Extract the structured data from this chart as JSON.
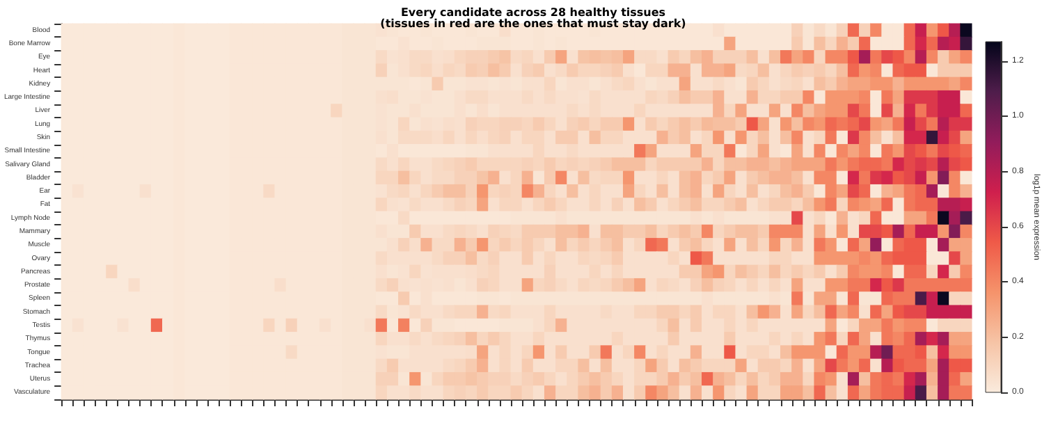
{
  "chart_data": {
    "type": "heatmap",
    "title": "Every candidate across 28 healthy tissues",
    "subtitle": "(tissues in red are the ones that must stay dark)",
    "clabel": "log1p mean expression",
    "clim": [
      0,
      1.27
    ],
    "cticks": [
      {
        "value": 0,
        "label": "0.0"
      },
      0.2,
      0.4,
      0.6,
      0.8,
      {
        "value": 1,
        "label": "1.0"
      },
      1.2
    ],
    "categories": [
      null,
      null,
      null,
      null,
      null,
      null,
      null,
      null,
      null,
      null,
      null,
      null,
      null,
      null,
      null,
      null,
      null,
      null,
      null,
      null,
      null,
      null,
      null,
      null,
      null,
      null,
      null,
      null,
      null,
      null,
      null,
      null,
      null,
      null,
      null,
      null,
      null,
      null,
      null,
      null,
      null,
      null,
      null,
      null,
      null,
      null,
      null,
      null,
      null,
      null,
      null,
      null,
      null,
      null,
      null,
      null,
      null,
      null,
      null,
      null,
      null,
      null,
      null,
      null,
      null,
      null,
      null,
      null,
      null,
      null,
      null,
      null,
      null,
      null,
      null,
      null,
      null,
      null,
      null,
      null,
      null
    ],
    "y_categories": [
      "Blood",
      "Bone Marrow",
      "Eye",
      "Heart",
      "Kidney",
      "Large Intestine",
      "Liver",
      "Lung",
      "Skin",
      "Small Intestine",
      "Salivary Gland",
      "Bladder",
      "Ear",
      "Fat",
      "Lymph Node",
      "Mammary",
      "Muscle",
      "Ovary",
      "Pancreas",
      "Prostate",
      "Spleen",
      "Stomach",
      "Testis",
      "Thymus",
      "Tongue",
      "Trachea",
      "Uterus",
      "Vasculature"
    ],
    "cells": [
      [
        0.01,
        0.01,
        0.01,
        0.01,
        0.01,
        0.01,
        0.01,
        0.01,
        0.01,
        0.01,
        0.02,
        0.01,
        0.01,
        0.01,
        0.01,
        0.02,
        0.02,
        0.02,
        0.02,
        0.02,
        0.02,
        0.02,
        0.02,
        0.02,
        0.02,
        0.03,
        0.03,
        0.03,
        0.04,
        0.03,
        0.02,
        0.02,
        0.03,
        0.02,
        0.02,
        0.02,
        0.03,
        0.02,
        0.02,
        0.06,
        0.02,
        0.02,
        0.03,
        0.02,
        0.02,
        0.02,
        0.02,
        0.03,
        0.02,
        0.02,
        0.02,
        0.02,
        0.02,
        0.02,
        0.02,
        0.02,
        0.02,
        0.02,
        0.05,
        0.02,
        0.02,
        0.02,
        0.02,
        0.02,
        0.02,
        0.12,
        0.03,
        0.08,
        0.03,
        0.12,
        0.5,
        0.12,
        0.4,
        0.02,
        0.02,
        0.5,
        0.75,
        0.35,
        0.55,
        0.8,
        1.25
      ],
      [
        0.01,
        0.01,
        0.01,
        0.01,
        0.01,
        0.01,
        0.01,
        0.01,
        0.01,
        0.01,
        0.02,
        0.01,
        0.01,
        0.01,
        0.01,
        0.02,
        0.02,
        0.02,
        0.02,
        0.02,
        0.02,
        0.02,
        0.02,
        0.02,
        0.02,
        0.03,
        0.03,
        0.03,
        0.02,
        0.02,
        0.04,
        0.02,
        0.02,
        0.03,
        0.02,
        0.02,
        0.02,
        0.03,
        0.03,
        0.03,
        0.02,
        0.02,
        0.03,
        0.02,
        0.03,
        0.02,
        0.02,
        0.02,
        0.02,
        0.02,
        0.02,
        0.02,
        0.02,
        0.02,
        0.02,
        0.02,
        0.02,
        0.02,
        0.02,
        0.3,
        0.02,
        0.02,
        0.02,
        0.02,
        0.02,
        0.15,
        0.03,
        0.2,
        0.1,
        0.25,
        0.15,
        0.5,
        0.02,
        0.02,
        0.02,
        0.5,
        0.7,
        0.5,
        0.8,
        0.75,
        1.15
      ],
      [
        0.01,
        0.01,
        0.01,
        0.01,
        0.01,
        0.01,
        0.01,
        0.01,
        0.01,
        0.01,
        0.02,
        0.01,
        0.01,
        0.01,
        0.01,
        0.02,
        0.02,
        0.02,
        0.02,
        0.02,
        0.02,
        0.02,
        0.02,
        0.02,
        0.02,
        0.03,
        0.03,
        0.03,
        0.08,
        0.04,
        0.05,
        0.08,
        0.08,
        0.05,
        0.06,
        0.1,
        0.12,
        0.12,
        0.15,
        0.18,
        0.08,
        0.1,
        0.05,
        0.15,
        0.3,
        0.05,
        0.18,
        0.2,
        0.18,
        0.2,
        0.3,
        0.08,
        0.08,
        0.05,
        0.15,
        0.1,
        0.2,
        0.25,
        0.12,
        0.12,
        0.12,
        0.2,
        0.05,
        0.2,
        0.45,
        0.3,
        0.4,
        0.1,
        0.4,
        0.4,
        0.55,
        0.85,
        0.45,
        0.6,
        0.55,
        0.4,
        0.8,
        0.4,
        0.15,
        0.3,
        0.4
      ],
      [
        0.01,
        0.01,
        0.01,
        0.01,
        0.01,
        0.01,
        0.01,
        0.01,
        0.01,
        0.01,
        0.02,
        0.01,
        0.01,
        0.01,
        0.01,
        0.02,
        0.02,
        0.02,
        0.02,
        0.02,
        0.02,
        0.02,
        0.02,
        0.02,
        0.02,
        0.03,
        0.03,
        0.03,
        0.12,
        0.03,
        0.05,
        0.08,
        0.1,
        0.06,
        0.1,
        0.08,
        0.15,
        0.13,
        0.2,
        0.15,
        0.05,
        0.12,
        0.15,
        0.05,
        0.08,
        0.15,
        0.1,
        0.1,
        0.12,
        0.15,
        0.05,
        0.02,
        0.1,
        0.1,
        0.25,
        0.25,
        0.05,
        0.25,
        0.25,
        0.3,
        0.08,
        0.1,
        0.2,
        0.05,
        0.1,
        0.15,
        0.12,
        0.15,
        0.1,
        0.2,
        0.5,
        0.35,
        0.4,
        0.02,
        0.5,
        0.55,
        0.55,
        0.02,
        0.15,
        0.15,
        0.15
      ],
      [
        0.01,
        0.01,
        0.01,
        0.01,
        0.01,
        0.01,
        0.01,
        0.01,
        0.01,
        0.01,
        0.02,
        0.01,
        0.01,
        0.01,
        0.01,
        0.02,
        0.02,
        0.02,
        0.02,
        0.02,
        0.02,
        0.02,
        0.02,
        0.02,
        0.02,
        0.03,
        0.03,
        0.03,
        0.03,
        0.03,
        0.03,
        0.02,
        0.03,
        0.15,
        0.03,
        0.03,
        0.04,
        0.04,
        0.03,
        0.04,
        0.03,
        0.05,
        0.05,
        0.1,
        0.03,
        0.05,
        0.05,
        0.03,
        0.05,
        0.08,
        0.1,
        0.05,
        0.03,
        0.05,
        0.05,
        0.3,
        0.05,
        0.05,
        0.08,
        0.05,
        0.03,
        0.15,
        0.1,
        0.05,
        0.08,
        0.1,
        0.05,
        0.2,
        0.15,
        0.25,
        0.3,
        0.3,
        0.35,
        0.35,
        0.25,
        0.35,
        0.35,
        0.35,
        0.35,
        0.3,
        0.4
      ],
      [
        0.01,
        0.01,
        0.01,
        0.01,
        0.01,
        0.01,
        0.01,
        0.01,
        0.01,
        0.01,
        0.02,
        0.01,
        0.01,
        0.01,
        0.01,
        0.02,
        0.02,
        0.02,
        0.02,
        0.02,
        0.02,
        0.02,
        0.02,
        0.02,
        0.02,
        0.03,
        0.03,
        0.03,
        0.05,
        0.06,
        0.03,
        0.03,
        0.04,
        0.03,
        0.03,
        0.05,
        0.08,
        0.08,
        0.05,
        0.05,
        0.05,
        0.08,
        0.05,
        0.08,
        0.05,
        0.05,
        0.04,
        0.08,
        0.05,
        0.05,
        0.05,
        0.05,
        0.1,
        0.08,
        0.12,
        0.2,
        0.15,
        0.15,
        0.25,
        0.05,
        0.05,
        0.25,
        0.1,
        0.1,
        0.15,
        0.15,
        0.4,
        0.02,
        0.35,
        0.35,
        0.35,
        0.4,
        0.02,
        0.45,
        0.3,
        0.65,
        0.65,
        0.65,
        0.75,
        0.75,
        0.02
      ],
      [
        0.01,
        0.01,
        0.01,
        0.01,
        0.01,
        0.01,
        0.01,
        0.01,
        0.01,
        0.01,
        0.02,
        0.01,
        0.01,
        0.01,
        0.01,
        0.02,
        0.02,
        0.02,
        0.02,
        0.02,
        0.02,
        0.02,
        0.02,
        0.02,
        0.1,
        0.03,
        0.03,
        0.03,
        0.04,
        0.03,
        0.03,
        0.05,
        0.03,
        0.03,
        0.03,
        0.05,
        0.03,
        0.06,
        0.03,
        0.05,
        0.05,
        0.05,
        0.05,
        0.05,
        0.05,
        0.08,
        0.05,
        0.08,
        0.05,
        0.05,
        0.05,
        0.1,
        0.05,
        0.05,
        0.05,
        0.05,
        0.05,
        0.05,
        0.25,
        0.1,
        0.3,
        0.05,
        0.05,
        0.3,
        0.05,
        0.4,
        0.2,
        0.3,
        0.35,
        0.35,
        0.6,
        0.45,
        0.02,
        0.6,
        0.25,
        0.7,
        0.45,
        0.65,
        0.75,
        0.75,
        0.5
      ],
      [
        0.01,
        0.01,
        0.01,
        0.01,
        0.01,
        0.01,
        0.01,
        0.01,
        0.01,
        0.01,
        0.02,
        0.01,
        0.01,
        0.01,
        0.01,
        0.02,
        0.02,
        0.02,
        0.02,
        0.02,
        0.02,
        0.02,
        0.02,
        0.02,
        0.02,
        0.03,
        0.03,
        0.03,
        0.04,
        0.03,
        0.1,
        0.03,
        0.05,
        0.04,
        0.06,
        0.05,
        0.12,
        0.1,
        0.1,
        0.12,
        0.12,
        0.1,
        0.15,
        0.1,
        0.05,
        0.12,
        0.15,
        0.1,
        0.15,
        0.15,
        0.35,
        0.05,
        0.15,
        0.1,
        0.15,
        0.2,
        0.15,
        0.22,
        0.2,
        0.2,
        0.15,
        0.55,
        0.3,
        0.05,
        0.35,
        0.2,
        0.4,
        0.35,
        0.5,
        0.45,
        0.5,
        0.6,
        0.35,
        0.3,
        0.45,
        0.75,
        0.6,
        0.45,
        0.8,
        0.65,
        0.65
      ],
      [
        0.01,
        0.01,
        0.01,
        0.01,
        0.01,
        0.01,
        0.01,
        0.01,
        0.01,
        0.01,
        0.02,
        0.01,
        0.01,
        0.01,
        0.01,
        0.02,
        0.02,
        0.02,
        0.02,
        0.02,
        0.02,
        0.02,
        0.02,
        0.02,
        0.02,
        0.03,
        0.03,
        0.03,
        0.05,
        0.03,
        0.08,
        0.08,
        0.08,
        0.06,
        0.1,
        0.05,
        0.1,
        0.06,
        0.1,
        0.12,
        0.05,
        0.1,
        0.1,
        0.05,
        0.15,
        0.15,
        0.05,
        0.2,
        0.1,
        0.1,
        0.05,
        0.05,
        0.05,
        0.25,
        0.15,
        0.2,
        0.05,
        0.1,
        0.35,
        0.05,
        0.35,
        0.1,
        0.2,
        0.05,
        0.2,
        0.4,
        0.05,
        0.1,
        0.45,
        0.02,
        0.65,
        0.4,
        0.2,
        0.05,
        0.2,
        0.7,
        0.7,
        1.15,
        0.75,
        0.6,
        0.3
      ],
      [
        0.01,
        0.01,
        0.01,
        0.01,
        0.01,
        0.01,
        0.01,
        0.01,
        0.01,
        0.01,
        0.02,
        0.01,
        0.01,
        0.01,
        0.01,
        0.02,
        0.02,
        0.02,
        0.02,
        0.02,
        0.02,
        0.02,
        0.02,
        0.02,
        0.02,
        0.03,
        0.03,
        0.03,
        0.02,
        0.05,
        0.02,
        0.02,
        0.02,
        0.02,
        0.02,
        0.02,
        0.03,
        0.03,
        0.05,
        0.05,
        0.05,
        0.05,
        0.1,
        0.05,
        0.05,
        0.08,
        0.05,
        0.05,
        0.05,
        0.05,
        0.05,
        0.45,
        0.3,
        0.05,
        0.05,
        0.05,
        0.3,
        0.1,
        0.1,
        0.45,
        0.02,
        0.1,
        0.3,
        0.05,
        0.02,
        0.3,
        0.05,
        0.4,
        0.02,
        0.4,
        0.3,
        0.4,
        0.02,
        0.45,
        0.35,
        0.6,
        0.55,
        0.45,
        0.6,
        0.55,
        0.5
      ],
      [
        0.01,
        0.01,
        0.01,
        0.01,
        0.01,
        0.01,
        0.01,
        0.01,
        0.01,
        0.01,
        0.02,
        0.01,
        0.01,
        0.01,
        0.01,
        0.02,
        0.02,
        0.02,
        0.02,
        0.02,
        0.02,
        0.02,
        0.02,
        0.02,
        0.02,
        0.03,
        0.03,
        0.03,
        0.08,
        0.05,
        0.1,
        0.05,
        0.05,
        0.08,
        0.1,
        0.12,
        0.15,
        0.1,
        0.1,
        0.1,
        0.1,
        0.12,
        0.1,
        0.15,
        0.1,
        0.12,
        0.1,
        0.12,
        0.15,
        0.2,
        0.2,
        0.2,
        0.1,
        0.15,
        0.15,
        0.15,
        0.15,
        0.25,
        0.1,
        0.2,
        0.2,
        0.25,
        0.25,
        0.2,
        0.25,
        0.3,
        0.3,
        0.3,
        0.45,
        0.35,
        0.45,
        0.5,
        0.5,
        0.45,
        0.7,
        0.6,
        0.65,
        0.6,
        0.8,
        0.6,
        0.55
      ],
      [
        0.01,
        0.01,
        0.01,
        0.01,
        0.01,
        0.01,
        0.01,
        0.01,
        0.01,
        0.01,
        0.02,
        0.01,
        0.01,
        0.01,
        0.01,
        0.02,
        0.02,
        0.02,
        0.02,
        0.02,
        0.02,
        0.02,
        0.02,
        0.02,
        0.02,
        0.03,
        0.03,
        0.03,
        0.1,
        0.1,
        0.2,
        0.1,
        0.05,
        0.08,
        0.08,
        0.12,
        0.12,
        0.18,
        0.25,
        0.05,
        0.1,
        0.25,
        0.03,
        0.15,
        0.4,
        0.05,
        0.2,
        0.08,
        0.1,
        0.1,
        0.35,
        0.05,
        0.05,
        0.1,
        0.05,
        0.2,
        0.25,
        0.1,
        0.15,
        0.3,
        0.05,
        0.15,
        0.2,
        0.25,
        0.25,
        0.2,
        0.05,
        0.4,
        0.4,
        0.02,
        0.7,
        0.45,
        0.65,
        0.7,
        0.55,
        0.6,
        0.75,
        0.35,
        0.95,
        0.4,
        0.02
      ],
      [
        0.01,
        0.04,
        0.01,
        0.01,
        0.01,
        0.01,
        0.01,
        0.05,
        0.01,
        0.01,
        0.02,
        0.01,
        0.01,
        0.01,
        0.01,
        0.02,
        0.02,
        0.02,
        0.08,
        0.02,
        0.02,
        0.02,
        0.02,
        0.02,
        0.02,
        0.03,
        0.03,
        0.03,
        0.04,
        0.08,
        0.1,
        0.05,
        0.1,
        0.15,
        0.2,
        0.2,
        0.12,
        0.35,
        0.1,
        0.12,
        0.1,
        0.4,
        0.25,
        0.1,
        0.05,
        0.2,
        0.05,
        0.1,
        0.05,
        0.05,
        0.3,
        0.1,
        0.05,
        0.2,
        0.05,
        0.2,
        0.25,
        0.05,
        0.3,
        0.1,
        0.05,
        0.2,
        0.05,
        0.1,
        0.2,
        0.25,
        0.15,
        0.02,
        0.4,
        0.3,
        0.6,
        0.5,
        0.02,
        0.25,
        0.3,
        0.45,
        0.5,
        0.85,
        0.02,
        0.4,
        0.25
      ],
      [
        0.01,
        0.01,
        0.01,
        0.01,
        0.01,
        0.01,
        0.01,
        0.01,
        0.01,
        0.01,
        0.02,
        0.01,
        0.01,
        0.01,
        0.01,
        0.02,
        0.02,
        0.02,
        0.02,
        0.02,
        0.02,
        0.02,
        0.02,
        0.02,
        0.02,
        0.03,
        0.03,
        0.03,
        0.1,
        0.05,
        0.04,
        0.08,
        0.05,
        0.05,
        0.08,
        0.12,
        0.1,
        0.3,
        0.05,
        0.1,
        0.1,
        0.05,
        0.1,
        0.15,
        0.1,
        0.05,
        0.05,
        0.1,
        0.05,
        0.12,
        0.05,
        0.2,
        0.15,
        0.05,
        0.1,
        0.15,
        0.2,
        0.1,
        0.1,
        0.15,
        0.2,
        0.05,
        0.1,
        0.15,
        0.15,
        0.1,
        0.2,
        0.35,
        0.45,
        0.1,
        0.4,
        0.35,
        0.3,
        0.5,
        0.02,
        0.45,
        0.5,
        0.5,
        0.8,
        0.8,
        0.75
      ],
      [
        0.01,
        0.01,
        0.01,
        0.01,
        0.01,
        0.01,
        0.01,
        0.01,
        0.01,
        0.01,
        0.02,
        0.01,
        0.01,
        0.01,
        0.01,
        0.02,
        0.02,
        0.02,
        0.02,
        0.02,
        0.02,
        0.02,
        0.02,
        0.02,
        0.02,
        0.03,
        0.03,
        0.03,
        0.02,
        0.02,
        0.08,
        0.02,
        0.02,
        0.02,
        0.02,
        0.02,
        0.02,
        0.02,
        0.02,
        0.02,
        0.03,
        0.03,
        0.03,
        0.03,
        0.05,
        0.03,
        0.03,
        0.03,
        0.03,
        0.03,
        0.03,
        0.03,
        0.03,
        0.03,
        0.03,
        0.03,
        0.05,
        0.03,
        0.05,
        0.03,
        0.03,
        0.03,
        0.03,
        0.05,
        0.05,
        0.6,
        0.05,
        0.1,
        0.02,
        0.25,
        0.05,
        0.1,
        0.5,
        0.02,
        0.02,
        0.3,
        0.3,
        0.45,
        1.25,
        0.85,
        1.1
      ],
      [
        0.01,
        0.01,
        0.01,
        0.01,
        0.01,
        0.01,
        0.01,
        0.01,
        0.01,
        0.01,
        0.02,
        0.01,
        0.01,
        0.01,
        0.01,
        0.02,
        0.02,
        0.02,
        0.02,
        0.02,
        0.02,
        0.02,
        0.02,
        0.02,
        0.02,
        0.03,
        0.03,
        0.03,
        0.05,
        0.03,
        0.03,
        0.15,
        0.05,
        0.05,
        0.08,
        0.1,
        0.08,
        0.05,
        0.12,
        0.1,
        0.08,
        0.15,
        0.15,
        0.15,
        0.2,
        0.2,
        0.25,
        0.05,
        0.2,
        0.2,
        0.15,
        0.15,
        0.2,
        0.1,
        0.15,
        0.2,
        0.15,
        0.4,
        0.1,
        0.15,
        0.2,
        0.2,
        0.15,
        0.4,
        0.4,
        0.4,
        0.05,
        0.3,
        0.05,
        0.35,
        0.05,
        0.6,
        0.6,
        0.55,
        0.85,
        0.5,
        0.75,
        0.75,
        0.35,
        0.95,
        0.4
      ],
      [
        0.01,
        0.01,
        0.01,
        0.01,
        0.01,
        0.01,
        0.01,
        0.01,
        0.01,
        0.01,
        0.02,
        0.01,
        0.01,
        0.01,
        0.01,
        0.02,
        0.02,
        0.02,
        0.02,
        0.02,
        0.02,
        0.02,
        0.02,
        0.02,
        0.02,
        0.03,
        0.03,
        0.03,
        0.03,
        0.05,
        0.12,
        0.06,
        0.25,
        0.08,
        0.08,
        0.25,
        0.15,
        0.35,
        0.1,
        0.15,
        0.1,
        0.15,
        0.1,
        0.05,
        0.2,
        0.1,
        0.15,
        0.1,
        0.15,
        0.2,
        0.05,
        0.1,
        0.5,
        0.45,
        0.05,
        0.15,
        0.2,
        0.1,
        0.05,
        0.3,
        0.05,
        0.2,
        0.1,
        0.35,
        0.1,
        0.25,
        0.05,
        0.45,
        0.35,
        0.02,
        0.5,
        0.3,
        0.9,
        0.02,
        0.5,
        0.55,
        0.55,
        0.02,
        0.85,
        0.3,
        0.3
      ],
      [
        0.01,
        0.01,
        0.01,
        0.01,
        0.01,
        0.01,
        0.01,
        0.01,
        0.01,
        0.01,
        0.02,
        0.01,
        0.01,
        0.01,
        0.01,
        0.02,
        0.02,
        0.02,
        0.02,
        0.02,
        0.02,
        0.02,
        0.02,
        0.02,
        0.02,
        0.03,
        0.03,
        0.03,
        0.08,
        0.05,
        0.05,
        0.05,
        0.05,
        0.08,
        0.12,
        0.12,
        0.2,
        0.08,
        0.12,
        0.05,
        0.05,
        0.15,
        0.05,
        0.1,
        0.05,
        0.05,
        0.1,
        0.08,
        0.1,
        0.15,
        0.05,
        0.05,
        0.05,
        0.05,
        0.1,
        0.05,
        0.55,
        0.45,
        0.05,
        0.05,
        0.05,
        0.05,
        0.05,
        0.1,
        0.1,
        0.05,
        0.05,
        0.35,
        0.35,
        0.35,
        0.35,
        0.4,
        0.35,
        0.5,
        0.55,
        0.55,
        0.55,
        0.02,
        0.02,
        0.6,
        0.3
      ],
      [
        0.01,
        0.01,
        0.01,
        0.01,
        0.1,
        0.01,
        0.01,
        0.01,
        0.01,
        0.01,
        0.02,
        0.01,
        0.01,
        0.01,
        0.01,
        0.02,
        0.02,
        0.02,
        0.02,
        0.02,
        0.02,
        0.02,
        0.02,
        0.02,
        0.02,
        0.03,
        0.03,
        0.03,
        0.05,
        0.03,
        0.04,
        0.1,
        0.04,
        0.05,
        0.05,
        0.05,
        0.06,
        0.08,
        0.1,
        0.05,
        0.05,
        0.05,
        0.05,
        0.12,
        0.05,
        0.05,
        0.05,
        0.1,
        0.05,
        0.1,
        0.05,
        0.05,
        0.05,
        0.05,
        0.05,
        0.15,
        0.15,
        0.3,
        0.35,
        0.1,
        0.2,
        0.15,
        0.1,
        0.2,
        0.1,
        0.15,
        0.1,
        0.15,
        0.05,
        0.15,
        0.4,
        0.35,
        0.35,
        0.4,
        0.02,
        0.5,
        0.5,
        0.1,
        0.7,
        0.15,
        0.4
      ],
      [
        0.01,
        0.01,
        0.01,
        0.01,
        0.01,
        0.01,
        0.06,
        0.01,
        0.01,
        0.01,
        0.02,
        0.01,
        0.01,
        0.01,
        0.01,
        0.02,
        0.02,
        0.02,
        0.02,
        0.06,
        0.02,
        0.02,
        0.02,
        0.02,
        0.02,
        0.03,
        0.03,
        0.03,
        0.08,
        0.12,
        0.05,
        0.04,
        0.05,
        0.04,
        0.05,
        0.03,
        0.05,
        0.12,
        0.1,
        0.05,
        0.05,
        0.3,
        0.1,
        0.12,
        0.08,
        0.05,
        0.1,
        0.08,
        0.1,
        0.15,
        0.2,
        0.3,
        0.05,
        0.1,
        0.08,
        0.05,
        0.12,
        0.2,
        0.12,
        0.1,
        0.05,
        0.1,
        0.05,
        0.1,
        0.05,
        0.3,
        0.05,
        0.05,
        0.35,
        0.35,
        0.45,
        0.45,
        0.7,
        0.55,
        0.65,
        0.45,
        0.45,
        0.45,
        0.45,
        0.45,
        0.45
      ],
      [
        0.01,
        0.01,
        0.01,
        0.01,
        0.01,
        0.01,
        0.01,
        0.01,
        0.01,
        0.01,
        0.02,
        0.01,
        0.01,
        0.01,
        0.01,
        0.02,
        0.02,
        0.02,
        0.02,
        0.02,
        0.02,
        0.02,
        0.02,
        0.02,
        0.02,
        0.03,
        0.03,
        0.03,
        0.02,
        0.02,
        0.15,
        0.02,
        0.05,
        0.02,
        0.02,
        0.02,
        0.02,
        0.03,
        0.03,
        0.02,
        0.03,
        0.03,
        0.03,
        0.03,
        0.03,
        0.03,
        0.03,
        0.03,
        0.03,
        0.03,
        0.03,
        0.03,
        0.03,
        0.03,
        0.03,
        0.03,
        0.03,
        0.05,
        0.03,
        0.03,
        0.03,
        0.03,
        0.03,
        0.05,
        0.03,
        0.45,
        0.03,
        0.3,
        0.3,
        0.03,
        0.5,
        0.03,
        0.03,
        0.5,
        0.45,
        0.45,
        1.1,
        0.75,
        1.25,
        0.1,
        0.1
      ],
      [
        0.01,
        0.01,
        0.01,
        0.01,
        0.01,
        0.01,
        0.01,
        0.01,
        0.01,
        0.01,
        0.02,
        0.01,
        0.01,
        0.01,
        0.01,
        0.02,
        0.02,
        0.02,
        0.02,
        0.02,
        0.02,
        0.02,
        0.02,
        0.02,
        0.02,
        0.03,
        0.03,
        0.03,
        0.08,
        0.03,
        0.04,
        0.08,
        0.05,
        0.05,
        0.08,
        0.1,
        0.1,
        0.25,
        0.08,
        0.1,
        0.05,
        0.05,
        0.05,
        0.1,
        0.05,
        0.05,
        0.05,
        0.05,
        0.08,
        0.05,
        0.05,
        0.1,
        0.1,
        0.15,
        0.15,
        0.1,
        0.15,
        0.05,
        0.1,
        0.1,
        0.05,
        0.2,
        0.35,
        0.25,
        0.05,
        0.3,
        0.1,
        0.2,
        0.5,
        0.3,
        0.4,
        0.05,
        0.5,
        0.3,
        0.55,
        0.6,
        0.6,
        0.75,
        0.75,
        0.75,
        0.75
      ],
      [
        0.01,
        0.04,
        0.01,
        0.01,
        0.01,
        0.04,
        0.01,
        0.01,
        0.5,
        0.01,
        0.02,
        0.01,
        0.01,
        0.01,
        0.01,
        0.02,
        0.02,
        0.02,
        0.1,
        0.02,
        0.12,
        0.02,
        0.02,
        0.05,
        0.02,
        0.03,
        0.03,
        0.05,
        0.45,
        0.02,
        0.42,
        0.02,
        0.12,
        0.03,
        0.03,
        0.02,
        0.02,
        0.02,
        0.02,
        0.03,
        0.03,
        0.03,
        0.05,
        0.1,
        0.25,
        0.05,
        0.05,
        0.05,
        0.05,
        0.05,
        0.05,
        0.05,
        0.05,
        0.1,
        0.2,
        0.05,
        0.15,
        0.05,
        0.05,
        0.1,
        0.05,
        0.1,
        0.05,
        0.05,
        0.05,
        0.05,
        0.05,
        0.05,
        0.3,
        0.02,
        0.1,
        0.3,
        0.3,
        0.45,
        0.35,
        0.4,
        0.4,
        0.02,
        0.1,
        0.1,
        0.1
      ],
      [
        0.01,
        0.01,
        0.01,
        0.01,
        0.01,
        0.01,
        0.01,
        0.01,
        0.01,
        0.01,
        0.02,
        0.01,
        0.01,
        0.01,
        0.01,
        0.02,
        0.02,
        0.02,
        0.02,
        0.02,
        0.02,
        0.02,
        0.02,
        0.02,
        0.02,
        0.03,
        0.03,
        0.03,
        0.1,
        0.05,
        0.05,
        0.08,
        0.05,
        0.08,
        0.1,
        0.12,
        0.2,
        0.1,
        0.15,
        0.1,
        0.05,
        0.05,
        0.1,
        0.05,
        0.05,
        0.05,
        0.05,
        0.05,
        0.05,
        0.1,
        0.05,
        0.05,
        0.05,
        0.05,
        0.15,
        0.05,
        0.05,
        0.05,
        0.05,
        0.15,
        0.05,
        0.05,
        0.05,
        0.1,
        0.05,
        0.1,
        0.05,
        0.35,
        0.45,
        0.1,
        0.5,
        0.3,
        0.05,
        0.45,
        0.4,
        0.5,
        0.85,
        0.7,
        0.85,
        0.3,
        0.3
      ],
      [
        0.01,
        0.01,
        0.01,
        0.01,
        0.01,
        0.01,
        0.01,
        0.01,
        0.01,
        0.01,
        0.02,
        0.01,
        0.01,
        0.01,
        0.01,
        0.02,
        0.02,
        0.02,
        0.02,
        0.02,
        0.08,
        0.02,
        0.02,
        0.02,
        0.02,
        0.03,
        0.03,
        0.03,
        0.04,
        0.03,
        0.03,
        0.05,
        0.05,
        0.05,
        0.05,
        0.05,
        0.06,
        0.3,
        0.05,
        0.1,
        0.05,
        0.1,
        0.35,
        0.05,
        0.15,
        0.05,
        0.05,
        0.15,
        0.45,
        0.05,
        0.1,
        0.4,
        0.05,
        0.1,
        0.05,
        0.05,
        0.25,
        0.05,
        0.05,
        0.55,
        0.05,
        0.1,
        0.1,
        0.05,
        0.2,
        0.35,
        0.35,
        0.35,
        0.02,
        0.5,
        0.35,
        0.35,
        0.8,
        1.0,
        0.5,
        0.5,
        0.55,
        0.2,
        0.7,
        0.35,
        0.35
      ],
      [
        0.01,
        0.01,
        0.01,
        0.01,
        0.01,
        0.01,
        0.01,
        0.01,
        0.01,
        0.01,
        0.02,
        0.01,
        0.01,
        0.01,
        0.01,
        0.02,
        0.02,
        0.02,
        0.02,
        0.02,
        0.02,
        0.02,
        0.02,
        0.02,
        0.02,
        0.03,
        0.03,
        0.03,
        0.08,
        0.15,
        0.05,
        0.05,
        0.05,
        0.05,
        0.08,
        0.1,
        0.15,
        0.25,
        0.05,
        0.1,
        0.05,
        0.15,
        0.05,
        0.05,
        0.1,
        0.1,
        0.2,
        0.05,
        0.2,
        0.05,
        0.05,
        0.1,
        0.3,
        0.15,
        0.05,
        0.2,
        0.15,
        0.1,
        0.1,
        0.1,
        0.3,
        0.05,
        0.15,
        0.15,
        0.1,
        0.25,
        0.05,
        0.3,
        0.6,
        0.45,
        0.35,
        0.5,
        0.05,
        0.8,
        0.55,
        0.5,
        0.5,
        0.3,
        0.85,
        0.55,
        0.55
      ],
      [
        0.01,
        0.01,
        0.01,
        0.01,
        0.01,
        0.01,
        0.01,
        0.01,
        0.01,
        0.01,
        0.02,
        0.01,
        0.01,
        0.01,
        0.01,
        0.02,
        0.02,
        0.02,
        0.02,
        0.02,
        0.02,
        0.02,
        0.02,
        0.02,
        0.02,
        0.03,
        0.03,
        0.03,
        0.12,
        0.12,
        0.03,
        0.35,
        0.03,
        0.1,
        0.15,
        0.15,
        0.18,
        0.15,
        0.12,
        0.12,
        0.08,
        0.12,
        0.15,
        0.1,
        0.05,
        0.1,
        0.15,
        0.2,
        0.15,
        0.1,
        0.05,
        0.1,
        0.1,
        0.15,
        0.25,
        0.15,
        0.2,
        0.5,
        0.25,
        0.2,
        0.1,
        0.2,
        0.1,
        0.15,
        0.25,
        0.25,
        0.1,
        0.4,
        0.35,
        0.05,
        0.85,
        0.2,
        0.45,
        0.5,
        0.45,
        0.7,
        0.85,
        0.25,
        0.85,
        0.5,
        0.3
      ],
      [
        0.01,
        0.01,
        0.01,
        0.01,
        0.01,
        0.01,
        0.01,
        0.01,
        0.01,
        0.01,
        0.02,
        0.01,
        0.01,
        0.01,
        0.01,
        0.02,
        0.02,
        0.02,
        0.02,
        0.02,
        0.02,
        0.02,
        0.02,
        0.02,
        0.02,
        0.03,
        0.03,
        0.03,
        0.1,
        0.05,
        0.05,
        0.08,
        0.05,
        0.05,
        0.1,
        0.12,
        0.1,
        0.15,
        0.1,
        0.1,
        0.15,
        0.1,
        0.05,
        0.25,
        0.1,
        0.1,
        0.2,
        0.25,
        0.15,
        0.25,
        0.05,
        0.15,
        0.4,
        0.3,
        0.2,
        0.05,
        0.25,
        0.05,
        0.35,
        0.1,
        0.05,
        0.3,
        0.1,
        0.1,
        0.3,
        0.3,
        0.2,
        0.5,
        0.2,
        0.05,
        0.5,
        0.3,
        0.45,
        0.5,
        0.5,
        0.75,
        1.1,
        0.2,
        0.85,
        0.45,
        0.45
      ]
    ]
  }
}
